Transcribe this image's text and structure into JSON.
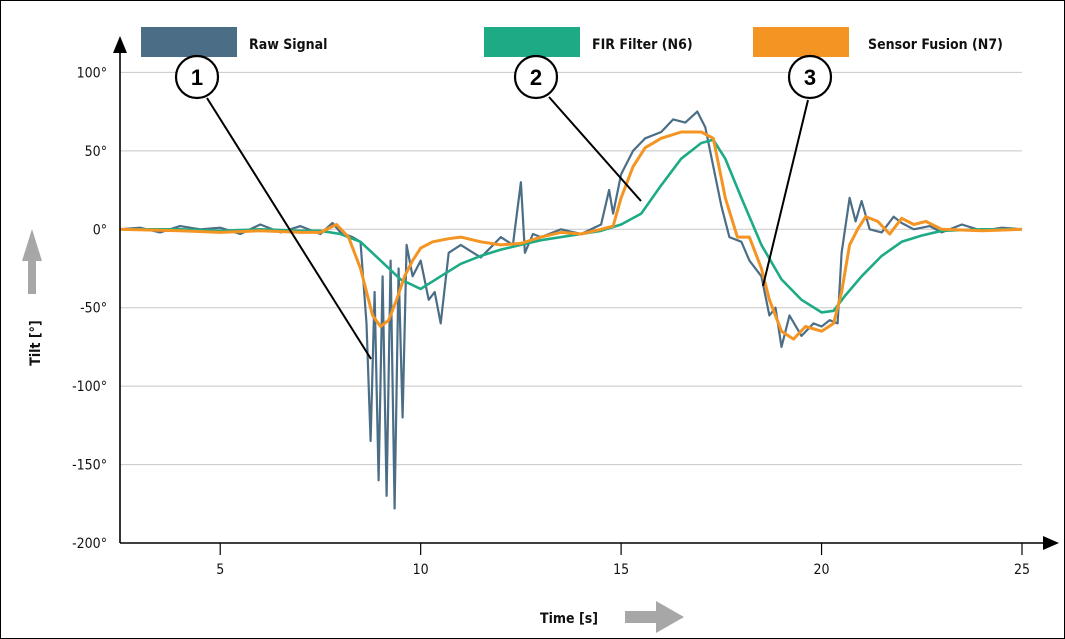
{
  "chart_data": {
    "type": "line",
    "xlabel": "Time [s]",
    "ylabel": "Tilt [°]",
    "xlim": [
      2.5,
      25
    ],
    "ylim": [
      -200,
      120
    ],
    "x_ticks": [
      "5",
      "10",
      "15",
      "20",
      "25"
    ],
    "y_ticks": [
      "100°",
      "50°",
      "0°",
      "-50°",
      "-100°",
      "-150°",
      "-200°"
    ],
    "grid": "horizontal",
    "legend_position": "top",
    "series": [
      {
        "name": "Raw Signal",
        "color": "#4b6e86",
        "x": [
          2.5,
          3,
          3.5,
          4,
          4.5,
          5,
          5.5,
          6,
          6.5,
          7,
          7.5,
          7.8,
          8,
          8.3,
          8.5,
          8.65,
          8.75,
          8.85,
          8.95,
          9.05,
          9.15,
          9.25,
          9.35,
          9.45,
          9.55,
          9.65,
          9.8,
          10,
          10.2,
          10.35,
          10.5,
          10.7,
          11,
          11.5,
          12,
          12.3,
          12.5,
          12.6,
          12.8,
          13,
          13.5,
          14,
          14.5,
          14.7,
          14.8,
          15,
          15.3,
          15.6,
          16,
          16.3,
          16.6,
          16.9,
          17.1,
          17.3,
          17.5,
          17.7,
          18,
          18.2,
          18.5,
          18.7,
          18.85,
          19,
          19.2,
          19.5,
          19.8,
          20,
          20.2,
          20.4,
          20.5,
          20.7,
          20.85,
          21,
          21.2,
          21.5,
          21.8,
          22,
          22.3,
          22.7,
          23,
          23.5,
          24,
          24.5,
          25
        ],
        "y": [
          0,
          1,
          -2,
          2,
          0,
          1,
          -3,
          3,
          -2,
          2,
          -3,
          4,
          -2,
          -5,
          -8,
          -60,
          -135,
          -40,
          -160,
          -30,
          -170,
          -20,
          -178,
          -25,
          -120,
          -10,
          -30,
          -20,
          -45,
          -40,
          -60,
          -15,
          -10,
          -18,
          -5,
          -10,
          30,
          -15,
          -3,
          -5,
          0,
          -3,
          3,
          25,
          10,
          35,
          50,
          58,
          62,
          70,
          68,
          75,
          65,
          40,
          15,
          -5,
          -8,
          -20,
          -30,
          -55,
          -50,
          -75,
          -55,
          -68,
          -60,
          -62,
          -58,
          -60,
          -15,
          20,
          5,
          18,
          0,
          -2,
          8,
          4,
          0,
          2,
          -2,
          3,
          -1,
          1,
          0
        ]
      },
      {
        "name": "FIR Filter (N6)",
        "color": "#1dab85",
        "x": [
          2.5,
          4,
          5,
          6,
          7,
          7.5,
          8,
          8.5,
          9,
          9.5,
          10,
          10.5,
          11,
          11.5,
          12,
          12.5,
          13,
          14,
          14.5,
          15,
          15.5,
          16,
          16.5,
          17,
          17.3,
          17.6,
          18,
          18.5,
          19,
          19.5,
          20,
          20.3,
          20.6,
          21,
          21.5,
          22,
          22.5,
          23,
          24,
          25
        ],
        "y": [
          0,
          0,
          -1,
          0,
          -1,
          -1,
          -3,
          -8,
          -20,
          -32,
          -38,
          -30,
          -22,
          -17,
          -13,
          -10,
          -7,
          -3,
          -1,
          3,
          10,
          28,
          45,
          55,
          57,
          45,
          20,
          -10,
          -32,
          -45,
          -53,
          -52,
          -42,
          -30,
          -17,
          -8,
          -4,
          -1,
          0,
          0
        ]
      },
      {
        "name": "Sensor Fusion (N7)",
        "color": "#f49422",
        "x": [
          2.5,
          4,
          5,
          6,
          7,
          7.5,
          7.9,
          8.2,
          8.5,
          8.8,
          9,
          9.2,
          9.4,
          9.6,
          9.8,
          10,
          10.3,
          10.7,
          11,
          11.5,
          12,
          12.5,
          13,
          13.5,
          14,
          14.5,
          14.8,
          15,
          15.3,
          15.6,
          16,
          16.5,
          17,
          17.3,
          17.6,
          17.9,
          18.2,
          18.5,
          18.7,
          19,
          19.3,
          19.6,
          20,
          20.3,
          20.5,
          20.7,
          20.9,
          21.1,
          21.4,
          21.7,
          22,
          22.3,
          22.6,
          23,
          24,
          25
        ],
        "y": [
          0,
          -1,
          -2,
          -1,
          -2,
          -2,
          3,
          -5,
          -25,
          -55,
          -62,
          -58,
          -45,
          -30,
          -20,
          -12,
          -8,
          -6,
          -5,
          -8,
          -10,
          -9,
          -5,
          -2,
          -3,
          0,
          2,
          20,
          40,
          52,
          58,
          62,
          62,
          58,
          20,
          -5,
          -5,
          -25,
          -45,
          -65,
          -70,
          -62,
          -65,
          -60,
          -40,
          -10,
          0,
          8,
          5,
          -3,
          7,
          3,
          5,
          0,
          -1,
          0
        ]
      }
    ],
    "annotations": [
      "1",
      "2",
      "3"
    ]
  }
}
